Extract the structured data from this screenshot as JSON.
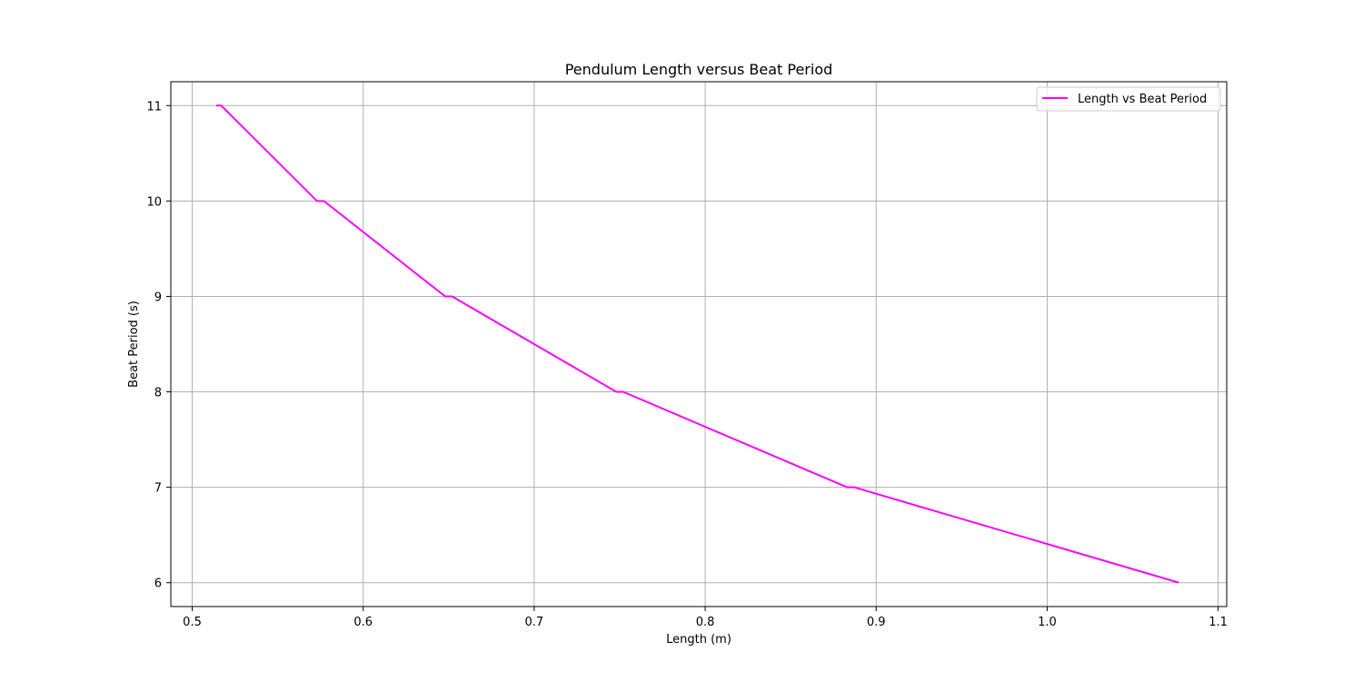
{
  "chart_data": {
    "type": "line",
    "title": "Pendulum Length versus Beat Period",
    "xlabel": "Length (m)",
    "ylabel": "Beat Period (s)",
    "xlim": [
      0.4875,
      1.105
    ],
    "ylim": [
      5.75,
      11.25
    ],
    "x_ticks": [
      0.5,
      0.6,
      0.7,
      0.8,
      0.9,
      1.0,
      1.1
    ],
    "x_tick_labels": [
      "0.5",
      "0.6",
      "0.7",
      "0.8",
      "0.9",
      "1.0",
      "1.1"
    ],
    "y_ticks": [
      6,
      7,
      8,
      9,
      10,
      11
    ],
    "y_tick_labels": [
      "6",
      "7",
      "8",
      "9",
      "10",
      "11"
    ],
    "grid": true,
    "legend_position": "top-right",
    "series": [
      {
        "name": "Length vs Beat Period",
        "color": "#ff00ff",
        "x": [
          0.514,
          0.517,
          0.573,
          0.577,
          0.648,
          0.652,
          0.748,
          0.752,
          0.883,
          0.887,
          1.077
        ],
        "y": [
          11,
          11,
          10,
          10,
          9,
          9,
          8,
          8,
          7,
          7,
          6
        ]
      }
    ]
  }
}
